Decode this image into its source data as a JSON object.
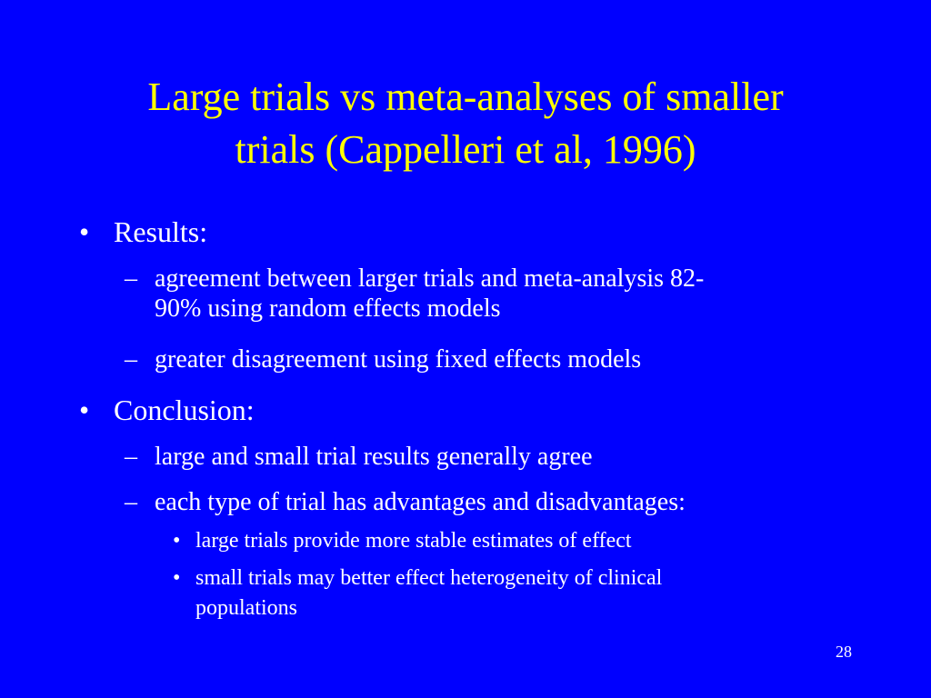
{
  "slide": {
    "title_line1": "Large trials vs meta-analyses of smaller",
    "title_line2": "trials (Cappelleri et al, 1996)",
    "bullet_char": "•",
    "dash_char": "–",
    "results_label": "Results:",
    "results_sub1_line1": "agreement between larger trials and meta-analysis 82-",
    "results_sub1_line2": "90% using random effects models",
    "results_sub2": "greater disagreement using fixed effects models",
    "conclusion_label": "Conclusion:",
    "conclusion_sub1": "large and small trial results generally agree",
    "conclusion_sub2": "each type of trial has advantages and disadvantages:",
    "conclusion_sub2_item1": "large trials provide more stable estimates of effect",
    "conclusion_sub2_item2_line1": "small trials may better effect heterogeneity of clinical",
    "conclusion_sub2_item2_line2": "populations",
    "page_number": "28",
    "colors": {
      "background": "#0000ff",
      "title": "#ffff00",
      "body": "#ffffff"
    }
  }
}
